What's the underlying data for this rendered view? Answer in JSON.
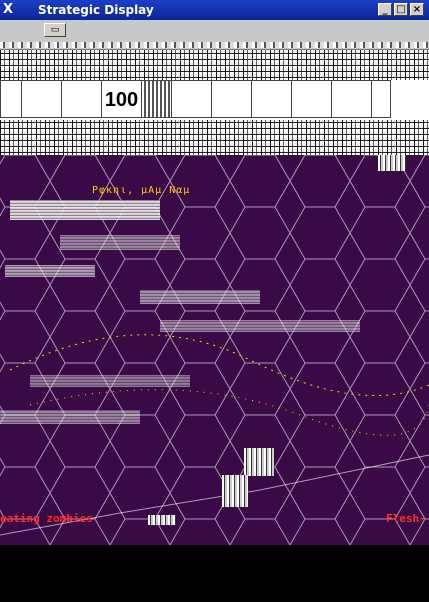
{
  "window": {
    "title": "Strategic Display",
    "app_icon": "X",
    "minimize_glyph": "_",
    "maximize_glyph": "□",
    "close_glyph": "×"
  },
  "toolbar": {
    "button_glyph": "▭"
  },
  "score": {
    "value": "100",
    "cell_count": 10
  },
  "map": {
    "background_color": "#3a0a47",
    "hex_line_color": "#b9a2c4",
    "yellow_text": "Ρφκηι, μΑμ Ναμ",
    "left_label": "eating zombies",
    "right_label": "Flesh-"
  },
  "colors": {
    "titlebar": "#0b2597",
    "label_red": "#ff2a2a",
    "label_yellow": "#ffcc00"
  }
}
